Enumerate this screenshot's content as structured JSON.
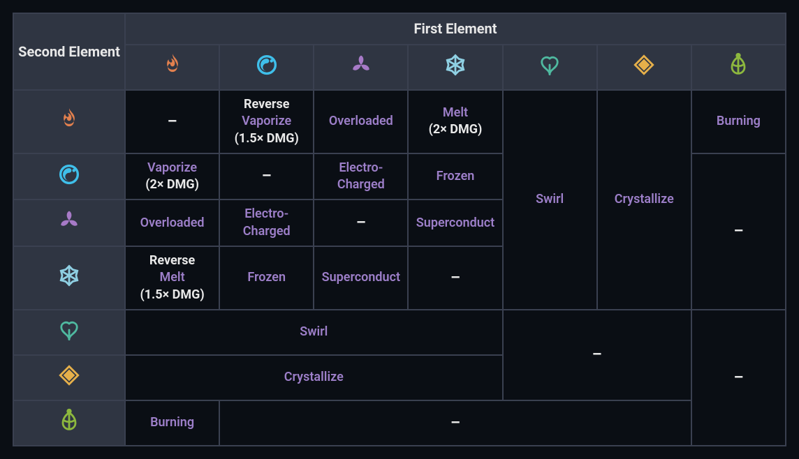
{
  "colors": {
    "background": "#0a0e14",
    "header_bg": "#2f3542",
    "border": "#3a4050",
    "text_white": "#e8e8e8",
    "text_purple": "#9d7fc9",
    "pyro": "#e2804e",
    "hydro": "#3fbfea",
    "electro": "#a77ac7",
    "cryo": "#8fd0e3",
    "anemo": "#4fb9a0",
    "geo": "#e6b04a",
    "dendro": "#8db83e"
  },
  "header": {
    "second_element": "Second Element",
    "first_element": "First Element"
  },
  "elements": [
    "pyro",
    "hydro",
    "electro",
    "cryo",
    "anemo",
    "geo",
    "dendro"
  ],
  "icon_names": {
    "pyro": "pyro-icon",
    "hydro": "hydro-icon",
    "electro": "electro-icon",
    "cryo": "cryo-icon",
    "anemo": "anemo-icon",
    "geo": "geo-icon",
    "dendro": "dendro-icon"
  },
  "reactions": {
    "dash": "–",
    "vaporize": "Vaporize",
    "reverse": "Reverse",
    "mult15": "(1.5× DMG)",
    "mult2": "(2× DMG)",
    "overloaded": "Overloaded",
    "melt": "Melt",
    "electro_charged": "Electro-Charged",
    "frozen": "Frozen",
    "superconduct": "Superconduct",
    "swirl": "Swirl",
    "crystallize": "Crystallize",
    "burning": "Burning"
  }
}
